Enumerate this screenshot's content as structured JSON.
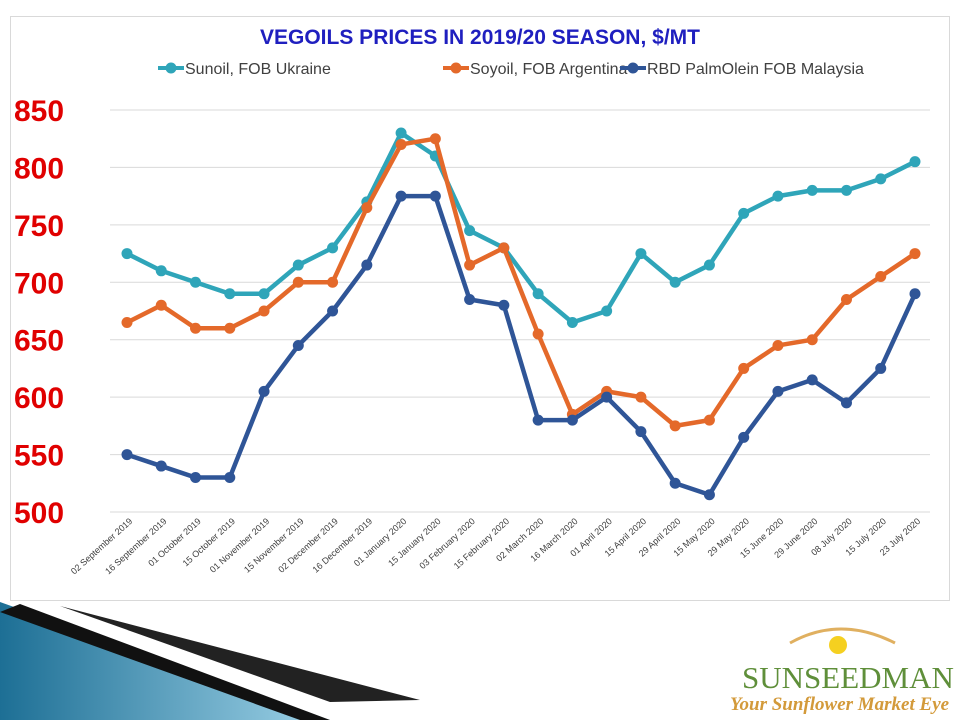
{
  "chart_data": {
    "type": "line",
    "title": "VEGOILS PRICES IN 2019/20 SEASON, $/MT",
    "xlabel": "",
    "ylabel": "",
    "ylim": [
      500,
      850
    ],
    "yticks": [
      500,
      550,
      600,
      650,
      700,
      750,
      800,
      850
    ],
    "grid": true,
    "legend_position": "top",
    "categories": [
      "02 September 2019",
      "16 September 2019",
      "01 October 2019",
      "15 October 2019",
      "01 November 2019",
      "15 November 2019",
      "02 December 2019",
      "16 December 2019",
      "01 January 2020",
      "15 January 2020",
      "03 February 2020",
      "15 February 2020",
      "02 March 2020",
      "16 March 2020",
      "01 April 2020",
      "15 April 2020",
      "29 April 2020",
      "15 May 2020",
      "29 May 2020",
      "15 June 2020",
      "29 June 2020",
      "08 July 2020",
      "15 July 2020",
      "23 July 2020"
    ],
    "series": [
      {
        "name": "Sunoil, FOB Ukraine",
        "color": "#2fa5b9",
        "values": [
          725,
          710,
          700,
          690,
          690,
          715,
          730,
          770,
          830,
          810,
          745,
          730,
          690,
          665,
          675,
          725,
          700,
          715,
          760,
          775,
          780,
          780,
          790,
          805
        ]
      },
      {
        "name": "Soyoil, FOB Argentina",
        "color": "#e4692a",
        "values": [
          665,
          680,
          660,
          660,
          675,
          700,
          700,
          765,
          820,
          825,
          715,
          730,
          655,
          585,
          605,
          600,
          575,
          580,
          625,
          645,
          650,
          685,
          705,
          725
        ]
      },
      {
        "name": "RBD PalmOlein FOB Malaysia",
        "color": "#2f5597",
        "values": [
          550,
          540,
          530,
          530,
          605,
          645,
          675,
          715,
          775,
          775,
          685,
          680,
          580,
          580,
          600,
          570,
          525,
          515,
          565,
          605,
          615,
          595,
          625,
          690
        ]
      }
    ]
  },
  "logo": {
    "brand": "SUNSEEDMAN",
    "tagline": "Your Sunflower Market Eye"
  }
}
